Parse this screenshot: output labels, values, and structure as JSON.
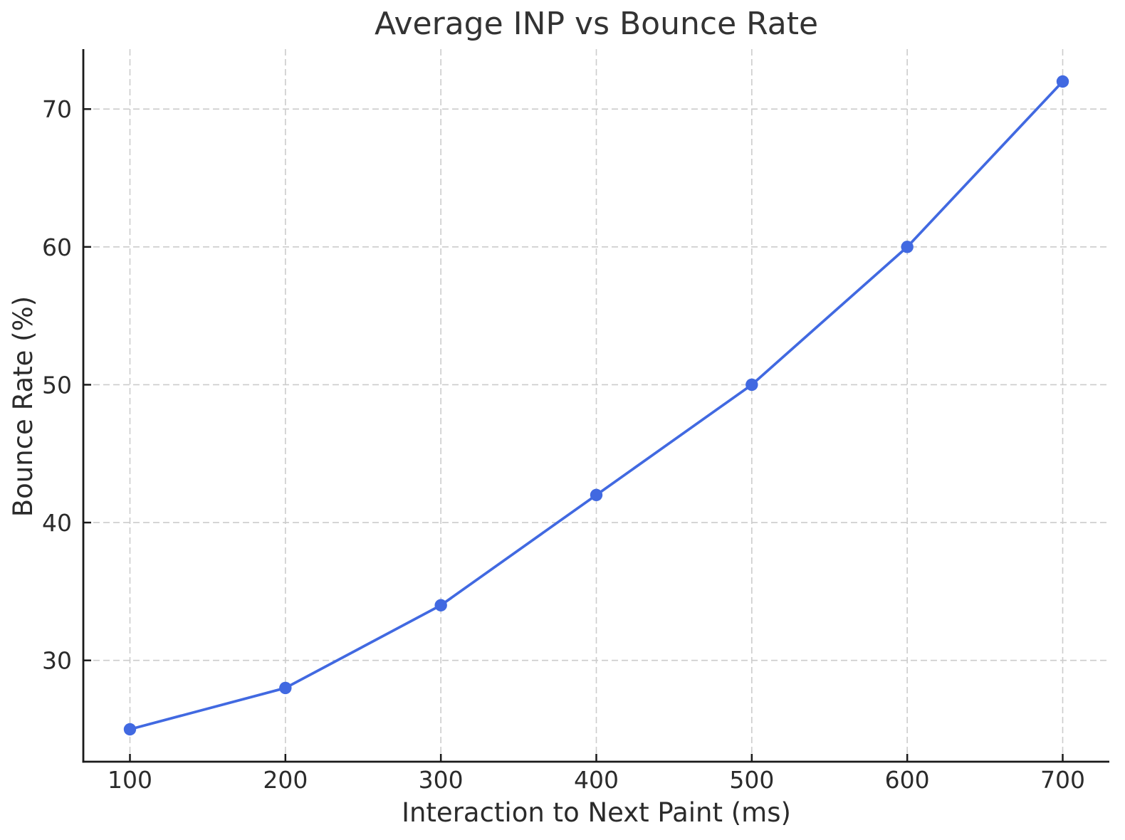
{
  "chart_data": {
    "type": "line",
    "title": "Average INP vs Bounce Rate",
    "xlabel": "Interaction to Next Paint (ms)",
    "ylabel": "Bounce Rate (%)",
    "x": [
      100,
      200,
      300,
      400,
      500,
      600,
      700
    ],
    "series": [
      {
        "name": "Bounce Rate",
        "values": [
          25,
          28,
          34,
          42,
          50,
          60,
          72
        ]
      }
    ],
    "xticks": [
      100,
      200,
      300,
      400,
      500,
      600,
      700
    ],
    "yticks": [
      30,
      40,
      50,
      60,
      70
    ],
    "xlim": [
      70,
      730
    ],
    "ylim": [
      22.65,
      74.35
    ],
    "grid": "dashed",
    "legend": "none",
    "marker": "circle",
    "colors": {
      "line": "#4169E1",
      "marker": "#4169E1",
      "grid": "#cccccc",
      "spine": "#1a1a1a",
      "tick_text": "#2b2b2b",
      "title_text": "#333333",
      "background": "#ffffff"
    }
  }
}
